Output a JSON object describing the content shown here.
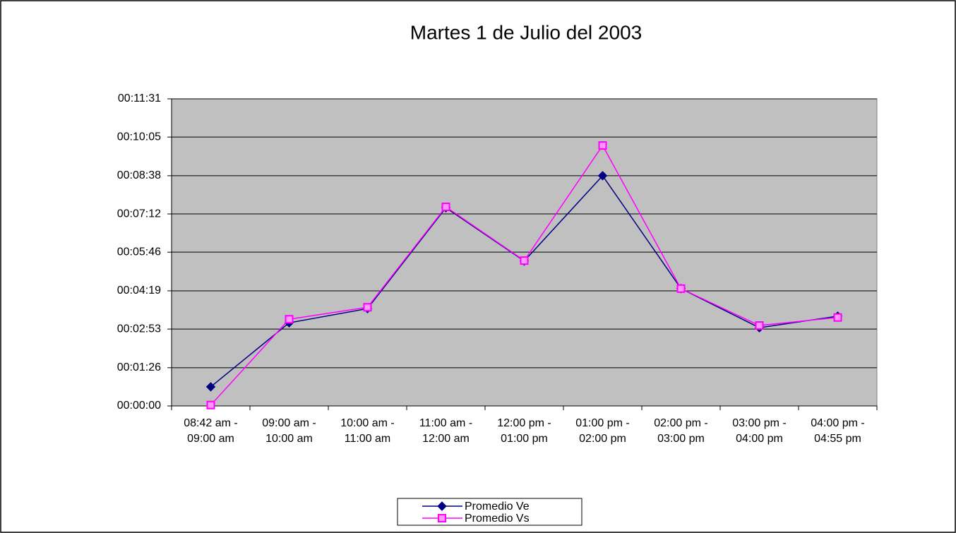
{
  "chart_data": {
    "type": "line",
    "title": "Martes 1 de Julio del 2003",
    "categories": [
      "08:42 am -\n09:00 am",
      "09:00 am -\n10:00 am",
      "10:00 am -\n11:00 am",
      "11:00 am -\n12:00 am",
      "12:00 pm -\n01:00 pm",
      "01:00 pm -\n02:00 pm",
      "02:00 pm -\n03:00 pm",
      "03:00 pm -\n04:00 pm",
      "04:00 pm -\n04:55 pm"
    ],
    "series": [
      {
        "name": "Promedio Ve",
        "color": "#000080",
        "marker": "diamond",
        "values": [
          43,
          187,
          219,
          446,
          326,
          518,
          264,
          176,
          202
        ]
      },
      {
        "name": "Promedio Vs",
        "color": "#ff00ff",
        "marker": "square",
        "values": [
          2,
          195,
          222,
          448,
          327,
          586,
          264,
          181,
          199
        ]
      }
    ],
    "ylim": [
      0,
      691
    ],
    "yticks": [
      {
        "value": 0,
        "label": "00:00:00"
      },
      {
        "value": 86,
        "label": "00:01:26"
      },
      {
        "value": 173,
        "label": "00:02:53"
      },
      {
        "value": 259,
        "label": "00:04:19"
      },
      {
        "value": 346,
        "label": "00:05:46"
      },
      {
        "value": 432,
        "label": "00:07:12"
      },
      {
        "value": 518,
        "label": "00:08:38"
      },
      {
        "value": 605,
        "label": "00:10:05"
      },
      {
        "value": 691,
        "label": "00:11:31"
      }
    ],
    "grid": true
  }
}
